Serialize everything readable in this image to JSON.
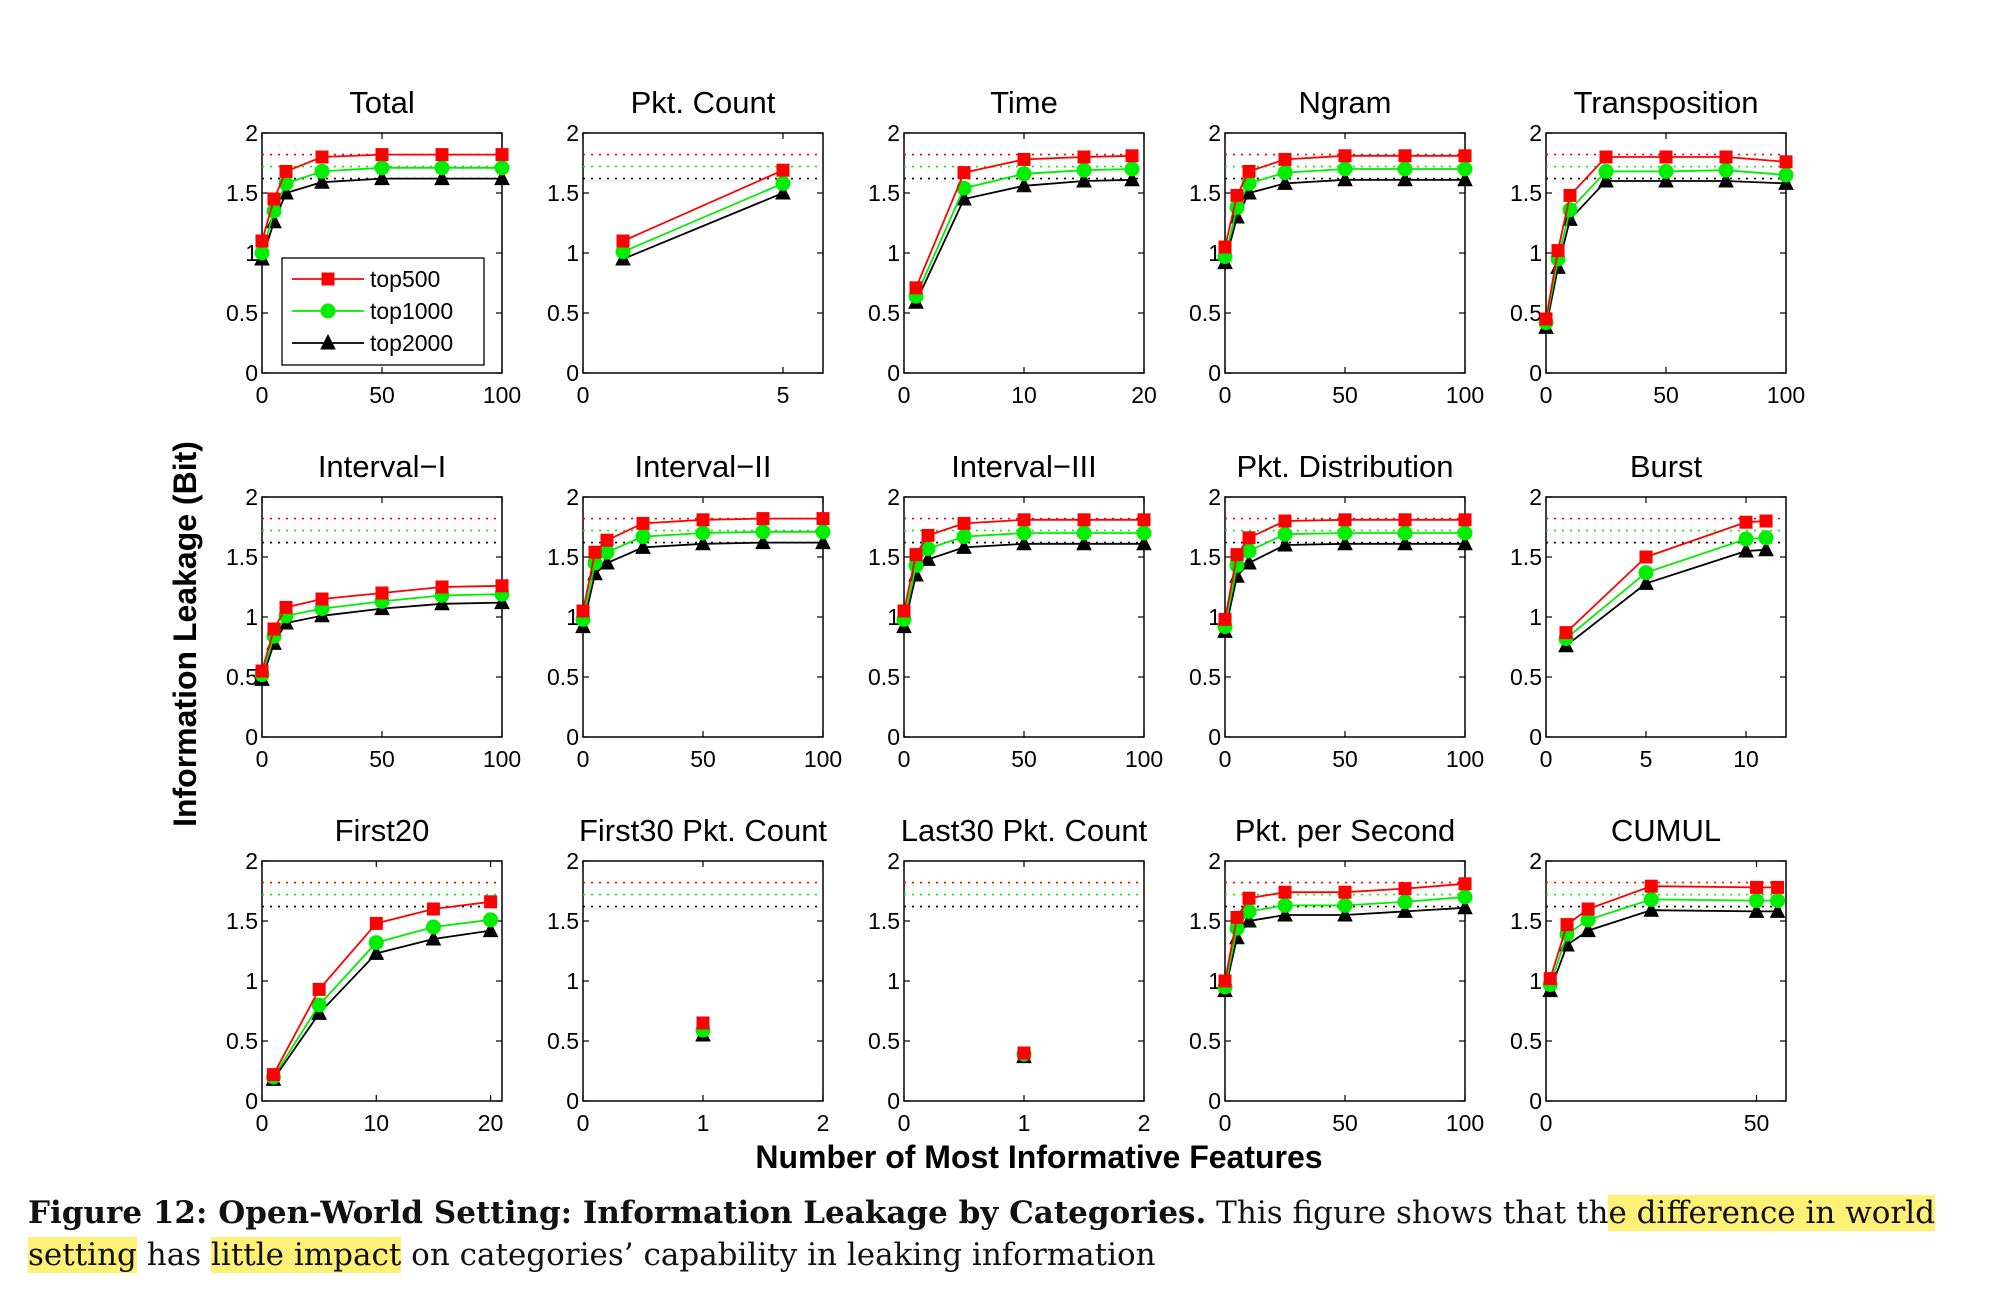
{
  "ylabel": "Information Leakage (Bit)",
  "xlabel": "Number of Most Informative Features",
  "legend": [
    "top500",
    "top1000",
    "top2000"
  ],
  "colors": {
    "top500": "#ff0000",
    "top1000": "#00ee00",
    "top2000": "#000000"
  },
  "caption": {
    "label": "Figure 12: Open-World Setting: Information Leakage by Categories.",
    "text_a": "This figure shows that th",
    "highlight_1": "e difference in world setting",
    "text_b": "has",
    "highlight_2": "little impact",
    "text_c": "on categories’ capability in leaking information"
  },
  "chart_data": [
    {
      "type": "line",
      "title": "Total",
      "xlim": [
        0,
        100
      ],
      "xticks": [
        "0",
        "50",
        "100"
      ],
      "ylim": [
        0,
        2
      ],
      "yticks": [
        "0",
        "0.5",
        "1",
        "1.5",
        "2"
      ],
      "ref_lines": [
        1.82,
        1.72,
        1.62
      ],
      "legend": true,
      "series": [
        {
          "name": "top500",
          "x": [
            0,
            5,
            10,
            25,
            50,
            75,
            100
          ],
          "y": [
            1.1,
            1.45,
            1.68,
            1.8,
            1.82,
            1.82,
            1.82
          ]
        },
        {
          "name": "top1000",
          "x": [
            0,
            5,
            10,
            25,
            50,
            75,
            100
          ],
          "y": [
            1.0,
            1.35,
            1.58,
            1.68,
            1.71,
            1.71,
            1.71
          ]
        },
        {
          "name": "top2000",
          "x": [
            0,
            5,
            10,
            25,
            50,
            75,
            100
          ],
          "y": [
            0.95,
            1.26,
            1.5,
            1.59,
            1.62,
            1.62,
            1.62
          ]
        }
      ]
    },
    {
      "type": "line",
      "title": "Pkt. Count",
      "xlim": [
        0,
        6
      ],
      "xticks": [
        "0",
        "5"
      ],
      "ylim": [
        0,
        2
      ],
      "yticks": [
        "0",
        "0.5",
        "1",
        "1.5",
        "2"
      ],
      "ref_lines": [
        1.82,
        1.72,
        1.62
      ],
      "series": [
        {
          "name": "top500",
          "x": [
            1,
            5
          ],
          "y": [
            1.1,
            1.69
          ]
        },
        {
          "name": "top1000",
          "x": [
            1,
            5
          ],
          "y": [
            1.01,
            1.58
          ]
        },
        {
          "name": "top2000",
          "x": [
            1,
            5
          ],
          "y": [
            0.95,
            1.5
          ]
        }
      ]
    },
    {
      "type": "line",
      "title": "Time",
      "xlim": [
        0,
        20
      ],
      "xticks": [
        "0",
        "10",
        "20"
      ],
      "ylim": [
        0,
        2
      ],
      "yticks": [
        "0",
        "0.5",
        "1",
        "1.5",
        "2"
      ],
      "ref_lines": [
        1.82,
        1.72,
        1.62
      ],
      "series": [
        {
          "name": "top500",
          "x": [
            1,
            5,
            10,
            15,
            19
          ],
          "y": [
            0.71,
            1.67,
            1.78,
            1.8,
            1.81
          ]
        },
        {
          "name": "top1000",
          "x": [
            1,
            5,
            10,
            15,
            19
          ],
          "y": [
            0.64,
            1.54,
            1.66,
            1.69,
            1.7
          ]
        },
        {
          "name": "top2000",
          "x": [
            1,
            5,
            10,
            15,
            19
          ],
          "y": [
            0.59,
            1.45,
            1.56,
            1.6,
            1.61
          ]
        }
      ]
    },
    {
      "type": "line",
      "title": "Ngram",
      "xlim": [
        0,
        100
      ],
      "xticks": [
        "0",
        "50",
        "100"
      ],
      "ylim": [
        0,
        2
      ],
      "yticks": [
        "0",
        "0.5",
        "1",
        "1.5",
        "2"
      ],
      "ref_lines": [
        1.82,
        1.72,
        1.62
      ],
      "series": [
        {
          "name": "top500",
          "x": [
            0,
            5,
            10,
            25,
            50,
            75,
            100
          ],
          "y": [
            1.05,
            1.48,
            1.68,
            1.78,
            1.81,
            1.81,
            1.81
          ]
        },
        {
          "name": "top1000",
          "x": [
            0,
            5,
            10,
            25,
            50,
            75,
            100
          ],
          "y": [
            0.97,
            1.38,
            1.58,
            1.67,
            1.7,
            1.7,
            1.7
          ]
        },
        {
          "name": "top2000",
          "x": [
            0,
            5,
            10,
            25,
            50,
            75,
            100
          ],
          "y": [
            0.92,
            1.3,
            1.5,
            1.58,
            1.61,
            1.61,
            1.61
          ]
        }
      ]
    },
    {
      "type": "line",
      "title": "Transposition",
      "xlim": [
        0,
        100
      ],
      "xticks": [
        "0",
        "50",
        "100"
      ],
      "ylim": [
        0,
        2
      ],
      "yticks": [
        "0",
        "0.5",
        "1",
        "1.5",
        "2"
      ],
      "ref_lines": [
        1.82,
        1.72,
        1.62
      ],
      "series": [
        {
          "name": "top500",
          "x": [
            0,
            5,
            10,
            25,
            50,
            75,
            100
          ],
          "y": [
            0.45,
            1.02,
            1.48,
            1.8,
            1.8,
            1.8,
            1.76
          ]
        },
        {
          "name": "top1000",
          "x": [
            0,
            5,
            10,
            25,
            50,
            75,
            100
          ],
          "y": [
            0.42,
            0.95,
            1.36,
            1.68,
            1.68,
            1.69,
            1.65
          ]
        },
        {
          "name": "top2000",
          "x": [
            0,
            5,
            10,
            25,
            50,
            75,
            100
          ],
          "y": [
            0.38,
            0.88,
            1.28,
            1.6,
            1.6,
            1.6,
            1.58
          ]
        }
      ]
    },
    {
      "type": "line",
      "title": "Interval−I",
      "xlim": [
        0,
        100
      ],
      "xticks": [
        "0",
        "50",
        "100"
      ],
      "ylim": [
        0,
        2
      ],
      "yticks": [
        "0",
        "0.5",
        "1",
        "1.5",
        "2"
      ],
      "ref_lines": [
        1.82,
        1.72,
        1.62
      ],
      "series": [
        {
          "name": "top500",
          "x": [
            0,
            5,
            10,
            25,
            50,
            75,
            100
          ],
          "y": [
            0.55,
            0.9,
            1.08,
            1.15,
            1.2,
            1.25,
            1.26
          ]
        },
        {
          "name": "top1000",
          "x": [
            0,
            5,
            10,
            25,
            50,
            75,
            100
          ],
          "y": [
            0.52,
            0.84,
            1.01,
            1.07,
            1.13,
            1.18,
            1.19
          ]
        },
        {
          "name": "top2000",
          "x": [
            0,
            5,
            10,
            25,
            50,
            75,
            100
          ],
          "y": [
            0.48,
            0.78,
            0.95,
            1.01,
            1.07,
            1.11,
            1.12
          ]
        }
      ]
    },
    {
      "type": "line",
      "title": "Interval−II",
      "xlim": [
        0,
        100
      ],
      "xticks": [
        "0",
        "50",
        "100"
      ],
      "ylim": [
        0,
        2
      ],
      "yticks": [
        "0",
        "0.5",
        "1",
        "1.5",
        "2"
      ],
      "ref_lines": [
        1.82,
        1.72,
        1.62
      ],
      "series": [
        {
          "name": "top500",
          "x": [
            0,
            5,
            10,
            25,
            50,
            75,
            100
          ],
          "y": [
            1.05,
            1.54,
            1.64,
            1.78,
            1.81,
            1.82,
            1.82
          ]
        },
        {
          "name": "top1000",
          "x": [
            0,
            5,
            10,
            25,
            50,
            75,
            100
          ],
          "y": [
            0.98,
            1.45,
            1.54,
            1.67,
            1.7,
            1.71,
            1.71
          ]
        },
        {
          "name": "top2000",
          "x": [
            0,
            5,
            10,
            25,
            50,
            75,
            100
          ],
          "y": [
            0.92,
            1.36,
            1.45,
            1.58,
            1.61,
            1.62,
            1.62
          ]
        }
      ]
    },
    {
      "type": "line",
      "title": "Interval−III",
      "xlim": [
        0,
        100
      ],
      "xticks": [
        "0",
        "50",
        "100"
      ],
      "ylim": [
        0,
        2
      ],
      "yticks": [
        "0",
        "0.5",
        "1",
        "1.5",
        "2"
      ],
      "ref_lines": [
        1.82,
        1.72,
        1.62
      ],
      "series": [
        {
          "name": "top500",
          "x": [
            0,
            5,
            10,
            25,
            50,
            75,
            100
          ],
          "y": [
            1.05,
            1.52,
            1.68,
            1.78,
            1.81,
            1.81,
            1.81
          ]
        },
        {
          "name": "top1000",
          "x": [
            0,
            5,
            10,
            25,
            50,
            75,
            100
          ],
          "y": [
            0.98,
            1.43,
            1.57,
            1.67,
            1.7,
            1.7,
            1.7
          ]
        },
        {
          "name": "top2000",
          "x": [
            0,
            5,
            10,
            25,
            50,
            75,
            100
          ],
          "y": [
            0.92,
            1.35,
            1.48,
            1.58,
            1.61,
            1.61,
            1.61
          ]
        }
      ]
    },
    {
      "type": "line",
      "title": "Pkt. Distribution",
      "xlim": [
        0,
        100
      ],
      "xticks": [
        "0",
        "50",
        "100"
      ],
      "ylim": [
        0,
        2
      ],
      "yticks": [
        "0",
        "0.5",
        "1",
        "1.5",
        "2"
      ],
      "ref_lines": [
        1.82,
        1.72,
        1.62
      ],
      "series": [
        {
          "name": "top500",
          "x": [
            0,
            5,
            10,
            25,
            50,
            75,
            100
          ],
          "y": [
            0.98,
            1.52,
            1.66,
            1.8,
            1.81,
            1.81,
            1.81
          ]
        },
        {
          "name": "top1000",
          "x": [
            0,
            5,
            10,
            25,
            50,
            75,
            100
          ],
          "y": [
            0.92,
            1.43,
            1.55,
            1.69,
            1.7,
            1.7,
            1.7
          ]
        },
        {
          "name": "top2000",
          "x": [
            0,
            5,
            10,
            25,
            50,
            75,
            100
          ],
          "y": [
            0.88,
            1.34,
            1.45,
            1.6,
            1.61,
            1.61,
            1.61
          ]
        }
      ]
    },
    {
      "type": "line",
      "title": "Burst",
      "xlim": [
        0,
        12
      ],
      "xticks": [
        "0",
        "5",
        "10"
      ],
      "ylim": [
        0,
        2
      ],
      "yticks": [
        "0",
        "0.5",
        "1",
        "1.5",
        "2"
      ],
      "ref_lines": [
        1.82,
        1.72,
        1.62
      ],
      "series": [
        {
          "name": "top500",
          "x": [
            1,
            5,
            10,
            11
          ],
          "y": [
            0.87,
            1.5,
            1.79,
            1.8
          ]
        },
        {
          "name": "top1000",
          "x": [
            1,
            5,
            10,
            11
          ],
          "y": [
            0.82,
            1.37,
            1.65,
            1.66
          ]
        },
        {
          "name": "top2000",
          "x": [
            1,
            5,
            10,
            11
          ],
          "y": [
            0.76,
            1.28,
            1.55,
            1.56
          ]
        }
      ]
    },
    {
      "type": "line",
      "title": "First20",
      "xlim": [
        0,
        21
      ],
      "xticks": [
        "0",
        "10",
        "20"
      ],
      "ylim": [
        0,
        2
      ],
      "yticks": [
        "0",
        "0.5",
        "1",
        "1.5",
        "2"
      ],
      "ref_lines": [
        1.82,
        1.72,
        1.62
      ],
      "series": [
        {
          "name": "top500",
          "x": [
            1,
            5,
            10,
            15,
            20
          ],
          "y": [
            0.22,
            0.93,
            1.48,
            1.6,
            1.66
          ]
        },
        {
          "name": "top1000",
          "x": [
            1,
            5,
            10,
            15,
            20
          ],
          "y": [
            0.2,
            0.8,
            1.32,
            1.45,
            1.51
          ]
        },
        {
          "name": "top2000",
          "x": [
            1,
            5,
            10,
            15,
            20
          ],
          "y": [
            0.18,
            0.73,
            1.23,
            1.35,
            1.42
          ]
        }
      ]
    },
    {
      "type": "scatter",
      "title": "First30 Pkt. Count",
      "xlim": [
        0,
        2
      ],
      "xticks": [
        "0",
        "1",
        "2"
      ],
      "ylim": [
        0,
        2
      ],
      "yticks": [
        "0",
        "0.5",
        "1",
        "1.5",
        "2"
      ],
      "ref_lines": [
        1.82,
        1.72,
        1.62
      ],
      "series": [
        {
          "name": "top500",
          "x": [
            1
          ],
          "y": [
            0.65
          ]
        },
        {
          "name": "top1000",
          "x": [
            1
          ],
          "y": [
            0.59
          ]
        },
        {
          "name": "top2000",
          "x": [
            1
          ],
          "y": [
            0.55
          ]
        }
      ]
    },
    {
      "type": "scatter",
      "title": "Last30 Pkt. Count",
      "xlim": [
        0,
        2
      ],
      "xticks": [
        "0",
        "1",
        "2"
      ],
      "ylim": [
        0,
        2
      ],
      "yticks": [
        "0",
        "0.5",
        "1",
        "1.5",
        "2"
      ],
      "ref_lines": [
        1.82,
        1.72,
        1.62
      ],
      "series": [
        {
          "name": "top500",
          "x": [
            1
          ],
          "y": [
            0.4
          ]
        },
        {
          "name": "top1000",
          "x": [
            1
          ],
          "y": [
            0.39
          ]
        },
        {
          "name": "top2000",
          "x": [
            1
          ],
          "y": [
            0.37
          ]
        }
      ]
    },
    {
      "type": "line",
      "title": "Pkt. per Second",
      "xlim": [
        0,
        100
      ],
      "xticks": [
        "0",
        "50",
        "100"
      ],
      "ylim": [
        0,
        2
      ],
      "yticks": [
        "0",
        "0.5",
        "1",
        "1.5",
        "2"
      ],
      "ref_lines": [
        1.82,
        1.72,
        1.62
      ],
      "series": [
        {
          "name": "top500",
          "x": [
            0,
            5,
            10,
            25,
            50,
            75,
            100
          ],
          "y": [
            1.0,
            1.53,
            1.69,
            1.74,
            1.74,
            1.77,
            1.81
          ]
        },
        {
          "name": "top1000",
          "x": [
            0,
            5,
            10,
            25,
            50,
            75,
            100
          ],
          "y": [
            0.95,
            1.44,
            1.58,
            1.63,
            1.63,
            1.66,
            1.7
          ]
        },
        {
          "name": "top2000",
          "x": [
            0,
            5,
            10,
            25,
            50,
            75,
            100
          ],
          "y": [
            0.92,
            1.36,
            1.5,
            1.55,
            1.55,
            1.58,
            1.61
          ]
        }
      ]
    },
    {
      "type": "line",
      "title": "CUMUL",
      "xlim": [
        0,
        57
      ],
      "xticks": [
        "0",
        "50"
      ],
      "ylim": [
        0,
        2
      ],
      "yticks": [
        "0",
        "0.5",
        "1",
        "1.5",
        "2"
      ],
      "ref_lines": [
        1.82,
        1.72,
        1.62
      ],
      "series": [
        {
          "name": "top500",
          "x": [
            1,
            5,
            10,
            25,
            50,
            55
          ],
          "y": [
            1.02,
            1.47,
            1.6,
            1.79,
            1.78,
            1.78
          ]
        },
        {
          "name": "top1000",
          "x": [
            1,
            5,
            10,
            25,
            50,
            55
          ],
          "y": [
            0.97,
            1.39,
            1.51,
            1.68,
            1.67,
            1.67
          ]
        },
        {
          "name": "top2000",
          "x": [
            1,
            5,
            10,
            25,
            50,
            55
          ],
          "y": [
            0.92,
            1.3,
            1.42,
            1.59,
            1.58,
            1.58
          ]
        }
      ]
    }
  ]
}
